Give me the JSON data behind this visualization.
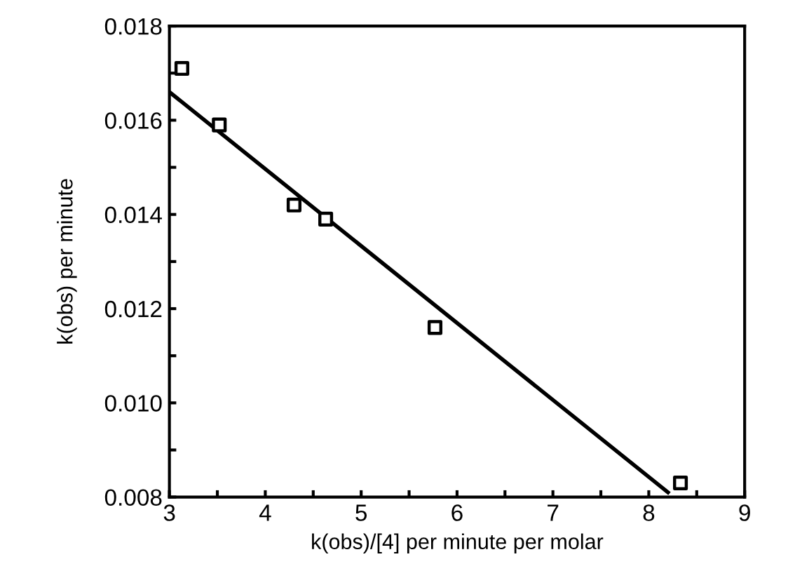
{
  "chart_data": {
    "type": "scatter",
    "xlabel": "k(obs)/[4] per minute per molar",
    "ylabel": "k(obs) per minute",
    "xlim": [
      3,
      9
    ],
    "ylim": [
      0.008,
      0.018
    ],
    "xticks": [
      3,
      {
        "value": 3.5,
        "label": null
      },
      4,
      {
        "value": 4.5,
        "label": null
      },
      5,
      {
        "value": 5.5,
        "label": null
      },
      6,
      {
        "value": 6.5,
        "label": null
      },
      7,
      {
        "value": 7.5,
        "label": null
      },
      8,
      {
        "value": 8.5,
        "label": null
      },
      9
    ],
    "yticks": [
      {
        "value": 0.008,
        "label": "0.008"
      },
      {
        "value": 0.009,
        "label": null
      },
      {
        "value": 0.01,
        "label": "0.010"
      },
      {
        "value": 0.011,
        "label": null
      },
      {
        "value": 0.012,
        "label": "0.012"
      },
      {
        "value": 0.013,
        "label": null
      },
      {
        "value": 0.014,
        "label": "0.014"
      },
      {
        "value": 0.015,
        "label": null
      },
      {
        "value": 0.016,
        "label": "0.016"
      },
      {
        "value": 0.017,
        "label": null
      },
      {
        "value": 0.018,
        "label": "0.018"
      }
    ],
    "grid": false,
    "legend": false,
    "series": [
      {
        "marker": "square",
        "color": "#000000",
        "x": [
          3.13,
          3.52,
          4.3,
          4.63,
          5.77,
          8.33
        ],
        "values": [
          0.0171,
          0.0159,
          0.0142,
          0.0139,
          0.0116,
          0.0083
        ]
      },
      {
        "type": "line",
        "marker": "none",
        "line_style": "solid",
        "color": "#000000",
        "x": [
          3.0,
          8.2
        ],
        "values": [
          0.0166,
          0.0081
        ]
      }
    ]
  }
}
